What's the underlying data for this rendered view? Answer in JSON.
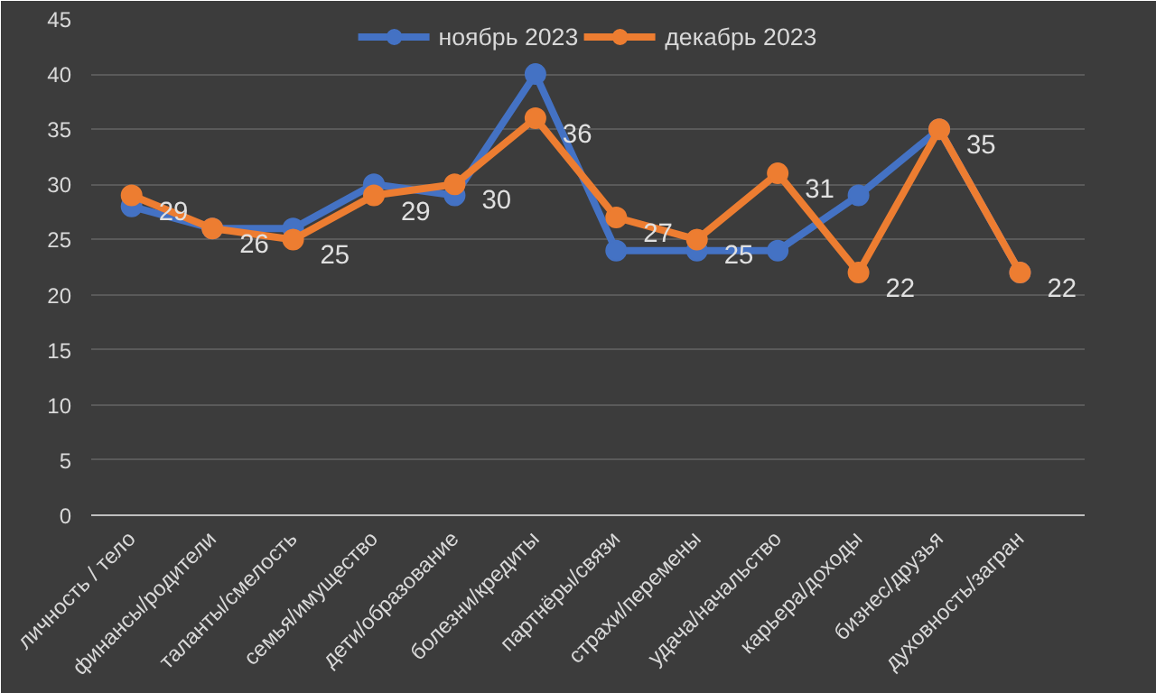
{
  "chart_data": {
    "type": "line",
    "categories": [
      "личность / тело",
      "финансы/родители",
      "таланты/смелость",
      "семья/имущество",
      "дети/образование",
      "болезни/кредиты",
      "партнёры/связи",
      "страхи/перемены",
      "удача/начальство",
      "карьера/доходы",
      "бизнес/друзья",
      "духовность/загран"
    ],
    "series": [
      {
        "name": "ноябрь 2023",
        "color": "#4472c4",
        "values": [
          28,
          26,
          26,
          30,
          29,
          40,
          24,
          24,
          24,
          29,
          35,
          22
        ]
      },
      {
        "name": "декабрь 2023",
        "color": "#ed7d31",
        "values": [
          29,
          26,
          25,
          29,
          30,
          36,
          27,
          25,
          31,
          22,
          35,
          22
        ],
        "value_labels": [
          "29",
          "26",
          "25",
          "29",
          "30",
          "36",
          "27",
          "25",
          "31",
          "22",
          "35",
          "22"
        ]
      }
    ],
    "ylim": [
      0,
      45
    ],
    "yticks": [
      0,
      5,
      10,
      15,
      20,
      25,
      30,
      35,
      40,
      45
    ],
    "grid": "y",
    "legend": "top",
    "marker": "circle",
    "line_style": "solid"
  }
}
